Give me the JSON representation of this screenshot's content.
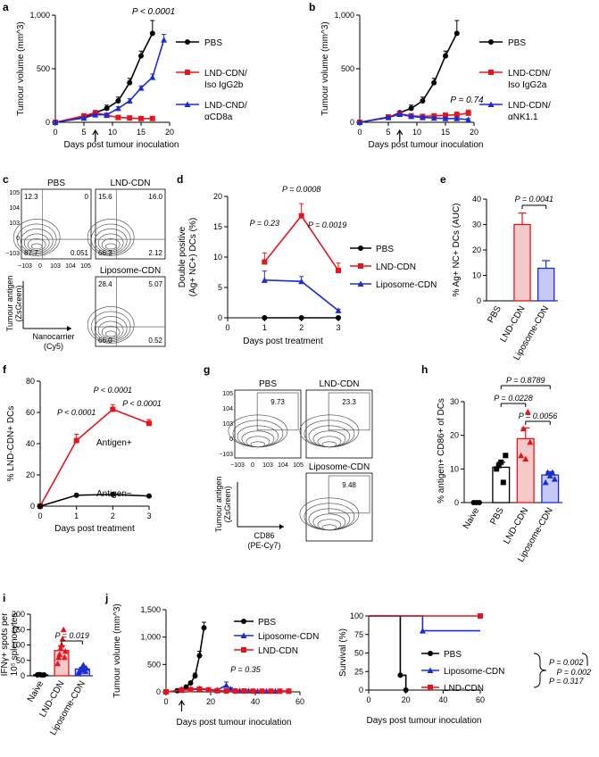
{
  "colors": {
    "pbs": "#000000",
    "lnd": "#e8141b",
    "lipo": "#1a2bd8",
    "lnd_fill": "#f6c9c9",
    "lipo_fill": "#c6c9f3"
  },
  "panels": {
    "a": {
      "letter": "a",
      "p": "P < 0.0001",
      "legend": [
        [
          "PBS"
        ],
        [
          "LND-CDN/",
          "Iso IgG2b"
        ],
        [
          "LND-CND/",
          "αCD8a"
        ]
      ]
    },
    "b": {
      "letter": "b",
      "p": "P = 0.74",
      "legend": [
        [
          "PBS"
        ],
        [
          "LND-CDN/",
          "Iso IgG2a"
        ],
        [
          "LND-CDN/",
          "αNK1.1"
        ]
      ]
    },
    "c": {
      "letter": "c"
    },
    "d": {
      "letter": "d"
    },
    "e": {
      "letter": "e"
    },
    "f": {
      "letter": "f"
    },
    "g": {
      "letter": "g"
    },
    "h": {
      "letter": "h"
    },
    "i": {
      "letter": "i"
    },
    "j": {
      "letter": "j"
    }
  },
  "flow_c": {
    "titles": [
      "PBS",
      "LND-CDN",
      "Liposome-CDN"
    ],
    "pbs_q": [
      "12.3",
      "0",
      "87.7",
      "0.051"
    ],
    "lnd_q": [
      "15.6",
      "16.0",
      "66.3",
      "2.12"
    ],
    "lipo_q": [
      "28.4",
      "5.07",
      "66.0",
      "0.52"
    ],
    "y_ticks": [
      "10^5",
      "10^4",
      "10^3",
      "0",
      "−10^3"
    ],
    "x_ticks": [
      "−10^3",
      "0",
      "10^3",
      "10^4",
      "10^5"
    ],
    "y_axis": [
      "Tumour antigen",
      "(ZsGreen)"
    ],
    "x_axis": [
      "Nanocarrier",
      "(Cy5)"
    ]
  },
  "flow_g": {
    "titles": [
      "PBS",
      "LND-CDN",
      "Liposome-CDN"
    ],
    "values": [
      "9.73",
      "23.3",
      "9.48"
    ],
    "y_axis": [
      "Tumour antigen",
      "(ZsGreen)"
    ],
    "x_axis": [
      "CD86",
      "(PE-Cy7)"
    ]
  },
  "chart_data": [
    {
      "panel": "a",
      "type": "line",
      "xlabel": "Days post tumour inoculation",
      "ylabel": "Tumour volume (mm^3)",
      "xlim": [
        0,
        20
      ],
      "ylim": [
        0,
        1000
      ],
      "xticks": [
        0,
        5,
        10,
        15,
        20
      ],
      "yticks": [
        0,
        500,
        1000
      ],
      "ytick_labels": [
        "0",
        "500",
        "1,000"
      ],
      "annotation": "P < 0.0001",
      "treatment_day": 7,
      "series": [
        {
          "name": "PBS",
          "color": "#000000",
          "marker": "circle",
          "x": [
            0,
            5,
            7,
            9,
            11,
            13,
            15,
            17
          ],
          "y": [
            0,
            45,
            90,
            130,
            200,
            370,
            620,
            830
          ],
          "err": [
            0,
            5,
            15,
            30,
            35,
            40,
            45,
            120
          ]
        },
        {
          "name": "LND-CDN/Iso IgG2b",
          "color": "#e8141b",
          "marker": "square",
          "x": [
            0,
            5,
            7,
            9,
            11,
            13,
            15,
            17
          ],
          "y": [
            0,
            60,
            90,
            65,
            45,
            40,
            35,
            35
          ],
          "err": [
            0,
            10,
            12,
            15,
            12,
            10,
            10,
            12
          ]
        },
        {
          "name": "LND-CND/αCD8a",
          "color": "#1a2bd8",
          "marker": "triangle",
          "x": [
            0,
            5,
            7,
            9,
            11,
            13,
            15,
            17,
            19
          ],
          "y": [
            0,
            40,
            70,
            70,
            130,
            200,
            320,
            420,
            770
          ],
          "err": [
            0,
            5,
            10,
            12,
            15,
            20,
            20,
            30,
            50
          ]
        }
      ]
    },
    {
      "panel": "b",
      "type": "line",
      "xlabel": "Days post tumour inoculation",
      "ylabel": "Tumour volume (mm^3)",
      "xlim": [
        0,
        20
      ],
      "ylim": [
        0,
        1000
      ],
      "xticks": [
        0,
        5,
        10,
        15,
        20
      ],
      "yticks": [
        0,
        500,
        1000
      ],
      "ytick_labels": [
        "0",
        "500",
        "1,000"
      ],
      "annotation": "P = 0.74",
      "treatment_day": 7,
      "series": [
        {
          "name": "PBS",
          "color": "#000000",
          "marker": "circle",
          "x": [
            0,
            5,
            7,
            9,
            11,
            13,
            15,
            17
          ],
          "y": [
            0,
            45,
            90,
            130,
            200,
            370,
            620,
            830
          ],
          "err": [
            0,
            5,
            15,
            30,
            35,
            40,
            45,
            120
          ]
        },
        {
          "name": "LND-CDN/Iso IgG2a",
          "color": "#e8141b",
          "marker": "square",
          "x": [
            0,
            5,
            7,
            9,
            11,
            13,
            15,
            17,
            19
          ],
          "y": [
            0,
            50,
            80,
            60,
            55,
            60,
            65,
            70,
            85
          ],
          "err": [
            0,
            8,
            10,
            12,
            12,
            15,
            20,
            25,
            30
          ]
        },
        {
          "name": "LND-CDN/αNK1.1",
          "color": "#1a2bd8",
          "marker": "triangle",
          "x": [
            0,
            5,
            7,
            9,
            11,
            13,
            15,
            17,
            19
          ],
          "y": [
            0,
            45,
            75,
            55,
            45,
            40,
            35,
            35,
            25
          ],
          "err": [
            0,
            8,
            10,
            10,
            10,
            8,
            8,
            10,
            10
          ]
        }
      ]
    },
    {
      "panel": "d",
      "type": "line",
      "xlabel": "Days post treatment",
      "ylabel": "Double positive (Ag+ NC+) DCs (%)",
      "xlim": [
        0,
        3
      ],
      "ylim": [
        0,
        20
      ],
      "xticks": [
        0,
        1,
        2,
        3
      ],
      "yticks": [
        0,
        5,
        10,
        15,
        20
      ],
      "annotations": [
        {
          "text": "P = 0.23",
          "x": 1
        },
        {
          "text": "P = 0.0008",
          "x": 2
        },
        {
          "text": "P = 0.0019",
          "x": 2.7
        }
      ],
      "series": [
        {
          "name": "PBS",
          "color": "#000000",
          "marker": "circle",
          "x": [
            1,
            2,
            3
          ],
          "y": [
            0,
            0,
            0
          ],
          "err": [
            0,
            0,
            0
          ]
        },
        {
          "name": "LND-CDN",
          "color": "#e8141b",
          "marker": "square",
          "x": [
            1,
            2,
            3
          ],
          "y": [
            9.2,
            16.8,
            7.8
          ],
          "err": [
            1.5,
            2.0,
            1.2
          ]
        },
        {
          "name": "Liposome-CDN",
          "color": "#1a2bd8",
          "marker": "triangle",
          "x": [
            1,
            2,
            3
          ],
          "y": [
            6.2,
            6.0,
            1.2
          ],
          "err": [
            1.5,
            0.8,
            0.2
          ]
        }
      ]
    },
    {
      "panel": "e",
      "type": "bar",
      "ylabel": "% Ag+ NC+ DCs (AUC)",
      "categories": [
        "PBS",
        "LND-CDN",
        "Liposome-CDN"
      ],
      "values": [
        0,
        30,
        12.8
      ],
      "err": [
        0,
        4.5,
        3.0
      ],
      "ylim": [
        0,
        40
      ],
      "yticks": [
        0,
        10,
        20,
        30,
        40
      ],
      "annotation": "P = 0.0041"
    },
    {
      "panel": "f",
      "type": "line",
      "xlabel": "Days post treatment",
      "ylabel": "% LND-CDN+ DCs",
      "xlim": [
        0,
        3
      ],
      "ylim": [
        0,
        80
      ],
      "xticks": [
        0,
        1,
        2,
        3
      ],
      "yticks": [
        0,
        20,
        40,
        60,
        80
      ],
      "annotations": [
        {
          "text": "P < 0.0001",
          "x": 1
        },
        {
          "text": "P < 0.0001",
          "x": 2
        },
        {
          "text": "P < 0.0001",
          "x": 3
        }
      ],
      "series": [
        {
          "name": "Antigen+",
          "color": "#e8141b",
          "marker": "square",
          "x": [
            0,
            1,
            2,
            3
          ],
          "y": [
            0,
            42,
            62,
            53
          ],
          "err": [
            0,
            4,
            3,
            2.5
          ]
        },
        {
          "name": "Antigen−",
          "color": "#000000",
          "marker": "circle",
          "x": [
            0,
            1,
            2,
            3
          ],
          "y": [
            0,
            7,
            7.5,
            6.5
          ],
          "err": [
            0,
            0.5,
            0.5,
            0.5
          ]
        }
      ]
    },
    {
      "panel": "h",
      "type": "bar",
      "ylabel": "% antigen+ CD86+ of DCs",
      "categories": [
        "Naive",
        "PBS",
        "LND-CDN",
        "Liposome-CDN"
      ],
      "values": [
        0,
        10.5,
        19,
        8.2
      ],
      "err": [
        0,
        1.5,
        3.2,
        1.0
      ],
      "points": [
        [
          0,
          0,
          0
        ],
        [
          10,
          11,
          12,
          6,
          14
        ],
        [
          14,
          22,
          13,
          27,
          18
        ],
        [
          6,
          9,
          8,
          9,
          7
        ]
      ],
      "ylim": [
        0,
        30
      ],
      "yticks": [
        0,
        10,
        20,
        30
      ],
      "annotations": [
        "P = 0.8789",
        "P = 0.0228",
        "P = 0.0056"
      ]
    },
    {
      "panel": "i",
      "type": "bar",
      "ylabel": "IFNγ+ spots per 10^5 splenocytes",
      "categories": [
        "Naive",
        "LND-CDN",
        "Liposome-CDN"
      ],
      "values": [
        3,
        82,
        22
      ],
      "err": [
        1,
        15,
        5
      ],
      "points": [
        [
          3,
          4,
          2,
          3
        ],
        [
          40,
          60,
          70,
          90,
          100,
          120,
          150,
          60,
          80
        ],
        [
          10,
          15,
          20,
          25,
          30,
          35,
          20,
          15,
          25
        ]
      ],
      "ylim": [
        0,
        200
      ],
      "yticks": [
        0,
        50,
        100,
        150,
        200
      ],
      "annotation": "P = 0.019"
    },
    {
      "panel": "j",
      "type": "line",
      "xlabel": "Days post tumour inoculation",
      "ylabel": "Tumour volume (mm^3)",
      "xlim": [
        0,
        60
      ],
      "ylim": [
        0,
        1500
      ],
      "xticks": [
        0,
        20,
        40,
        60
      ],
      "yticks": [
        0,
        500,
        1000,
        1500
      ],
      "ytick_labels": [
        "0",
        "500",
        "1,000",
        "1,500"
      ],
      "annotation": "P = 0.35",
      "treatment_day": 7,
      "series": [
        {
          "name": "PBS",
          "color": "#000000",
          "marker": "circle",
          "x": [
            0,
            5,
            7,
            9,
            11,
            13,
            15,
            17
          ],
          "y": [
            0,
            20,
            40,
            90,
            160,
            290,
            660,
            1170
          ],
          "err": [
            0,
            5,
            10,
            20,
            30,
            50,
            80,
            100
          ]
        },
        {
          "name": "Liposome-CDN",
          "color": "#1a2bd8",
          "marker": "triangle",
          "x": [
            0,
            7,
            11,
            15,
            19,
            23,
            27,
            29,
            33,
            37,
            41,
            45,
            49,
            55
          ],
          "y": [
            0,
            30,
            50,
            60,
            40,
            35,
            120,
            50,
            20,
            20,
            15,
            15,
            15,
            15
          ],
          "err": [
            0,
            10,
            20,
            25,
            20,
            15,
            60,
            25,
            10,
            10,
            5,
            5,
            5,
            5
          ]
        },
        {
          "name": "LND-CDN",
          "color": "#e8141b",
          "marker": "square",
          "x": [
            0,
            7,
            11,
            15,
            19,
            23,
            27,
            31,
            35,
            39,
            43,
            47,
            51,
            55
          ],
          "y": [
            0,
            30,
            40,
            50,
            35,
            20,
            15,
            15,
            15,
            12,
            12,
            12,
            12,
            12
          ],
          "err": [
            0,
            10,
            15,
            20,
            15,
            10,
            5,
            5,
            5,
            5,
            5,
            5,
            5,
            5
          ]
        }
      ]
    },
    {
      "panel": "j-survival",
      "type": "line",
      "xlabel": "Days post tumour inoculation",
      "ylabel": "Survival (%)",
      "xlim": [
        0,
        60
      ],
      "ylim": [
        0,
        100
      ],
      "xticks": [
        0,
        20,
        40,
        60
      ],
      "yticks": [
        0,
        25,
        50,
        75,
        100
      ],
      "series": [
        {
          "name": "PBS",
          "color": "#000000",
          "marker": "circle",
          "x": [
            0,
            17,
            17,
            20,
            20
          ],
          "y": [
            100,
            100,
            20,
            20,
            0
          ]
        },
        {
          "name": "Liposome-CDN",
          "color": "#1a2bd8",
          "marker": "triangle",
          "x": [
            0,
            29,
            29,
            60
          ],
          "y": [
            100,
            100,
            80,
            80
          ]
        },
        {
          "name": "LND-CDN",
          "color": "#e8141b",
          "marker": "square",
          "x": [
            0,
            60
          ],
          "y": [
            100,
            100
          ]
        }
      ],
      "annotations": [
        "P = 0.002",
        "P = 0.317",
        "P = 0.002"
      ]
    }
  ]
}
